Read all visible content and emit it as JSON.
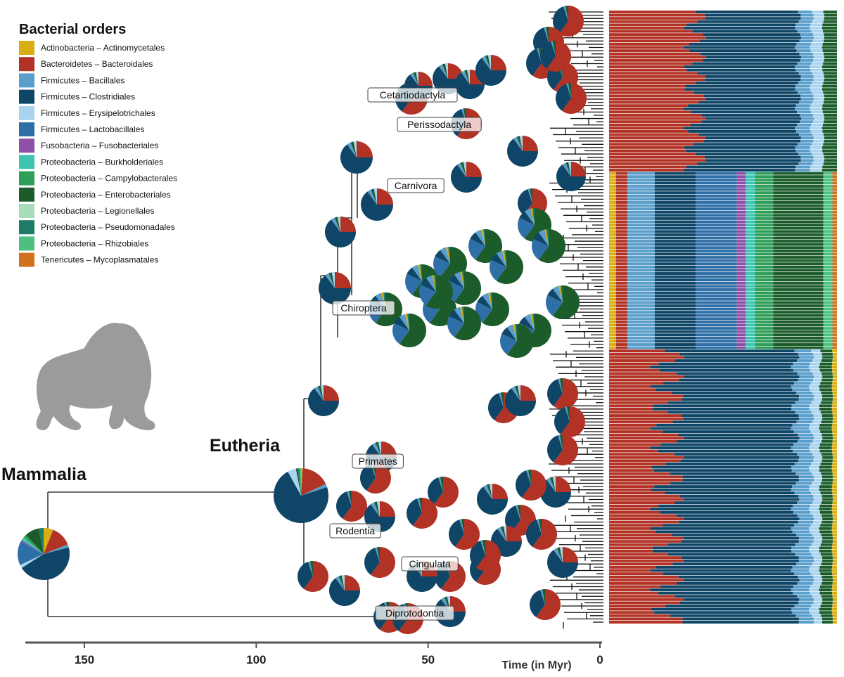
{
  "chart_data": {
    "type": "phylogeny-pie",
    "legend": {
      "title": "Bacterial orders",
      "items": [
        {
          "label": "Actinobacteria – Actinomycetales",
          "color": "#D9AE12"
        },
        {
          "label": "Bacteroidetes – Bacteroidales",
          "color": "#B23326"
        },
        {
          "label": "Firmicutes – Bacillales",
          "color": "#5A9ECB"
        },
        {
          "label": "Firmicutes – Clostridiales",
          "color": "#0F4566"
        },
        {
          "label": "Firmicutes – Erysipelotrichales",
          "color": "#A9D4EF"
        },
        {
          "label": "Firmicutes – Lactobacillales",
          "color": "#2F6FA8"
        },
        {
          "label": "Fusobacteria – Fusobacteriales",
          "color": "#8E4FA8"
        },
        {
          "label": "Proteobacteria – Burkholderiales",
          "color": "#3CC6B1"
        },
        {
          "label": "Proteobacteria – Campylobacterales",
          "color": "#2E9E59"
        },
        {
          "label": "Proteobacteria – Enterobacteriales",
          "color": "#1C5C2B"
        },
        {
          "label": "Proteobacteria – Legionellales",
          "color": "#A8DDBC"
        },
        {
          "label": "Proteobacteria – Pseudomonadales",
          "color": "#1E7B66"
        },
        {
          "label": "Proteobacteria – Rhizobiales",
          "color": "#4DBF7F"
        },
        {
          "label": "Tenericutes – Mycoplasmatales",
          "color": "#D2711E"
        }
      ]
    },
    "xaxis": {
      "title": "Time (in Myr)",
      "range": [
        165,
        0
      ],
      "ticks": [
        150,
        100,
        50,
        0
      ]
    },
    "big_labels": {
      "root": "Mammalia",
      "eutheria": "Eutheria"
    },
    "clades": [
      "Cetartiodactyla",
      "Perissodactyla",
      "Carnivora",
      "Chiroptera",
      "Primates",
      "Rodentia",
      "Cingulata",
      "Diprotodontia"
    ],
    "root_pie": {
      "label": "Mammalia",
      "myr": 160,
      "composition": {
        "Actinomycetales": 0.06,
        "Bacteroidales": 0.13,
        "Bacillales": 0.02,
        "Clostridiales": 0.45,
        "Erysipelotrichales": 0.02,
        "Lactobacillales": 0.15,
        "Fusobacteriales": 0.01,
        "Burkholderiales": 0.02,
        "Campylobacterales": 0.02,
        "Enterobacteriales": 0.09,
        "Pseudomonadales": 0.03
      }
    },
    "eutheria_pie": {
      "label": "Eutheria",
      "myr": 90,
      "composition": {
        "Actinomycetales": 0.01,
        "Bacteroidales": 0.17,
        "Bacillales": 0.02,
        "Clostridiales": 0.72,
        "Erysipelotrichales": 0.05,
        "Enterobacteriales": 0.01,
        "Pseudomonadales": 0.01,
        "Rhizobiales": 0.01
      }
    },
    "pie_profiles": {
      "clostridiales_rich": {
        "Bacteroidales": 0.25,
        "Clostridiales": 0.65,
        "Bacillales": 0.04,
        "Enterobacteriales": 0.03,
        "Erysipelotrichales": 0.03
      },
      "bacteroidales_rich": {
        "Bacteroidales": 0.6,
        "Clostridiales": 0.35,
        "Bacillales": 0.02,
        "Enterobacteriales": 0.03
      },
      "enterobacteriales_rich": {
        "Enterobacteriales": 0.6,
        "Lactobacillales": 0.22,
        "Clostridiales": 0.08,
        "Bacillales": 0.06,
        "Actinomycetales": 0.02,
        "Pseudomonadales": 0.02
      }
    },
    "tips": {
      "count": 190,
      "top_group_profile": "bacteroidales_rich",
      "middle_group_profile": "enterobacteriales_rich",
      "bottom_group_profile": "bacteroidales_rich"
    }
  }
}
